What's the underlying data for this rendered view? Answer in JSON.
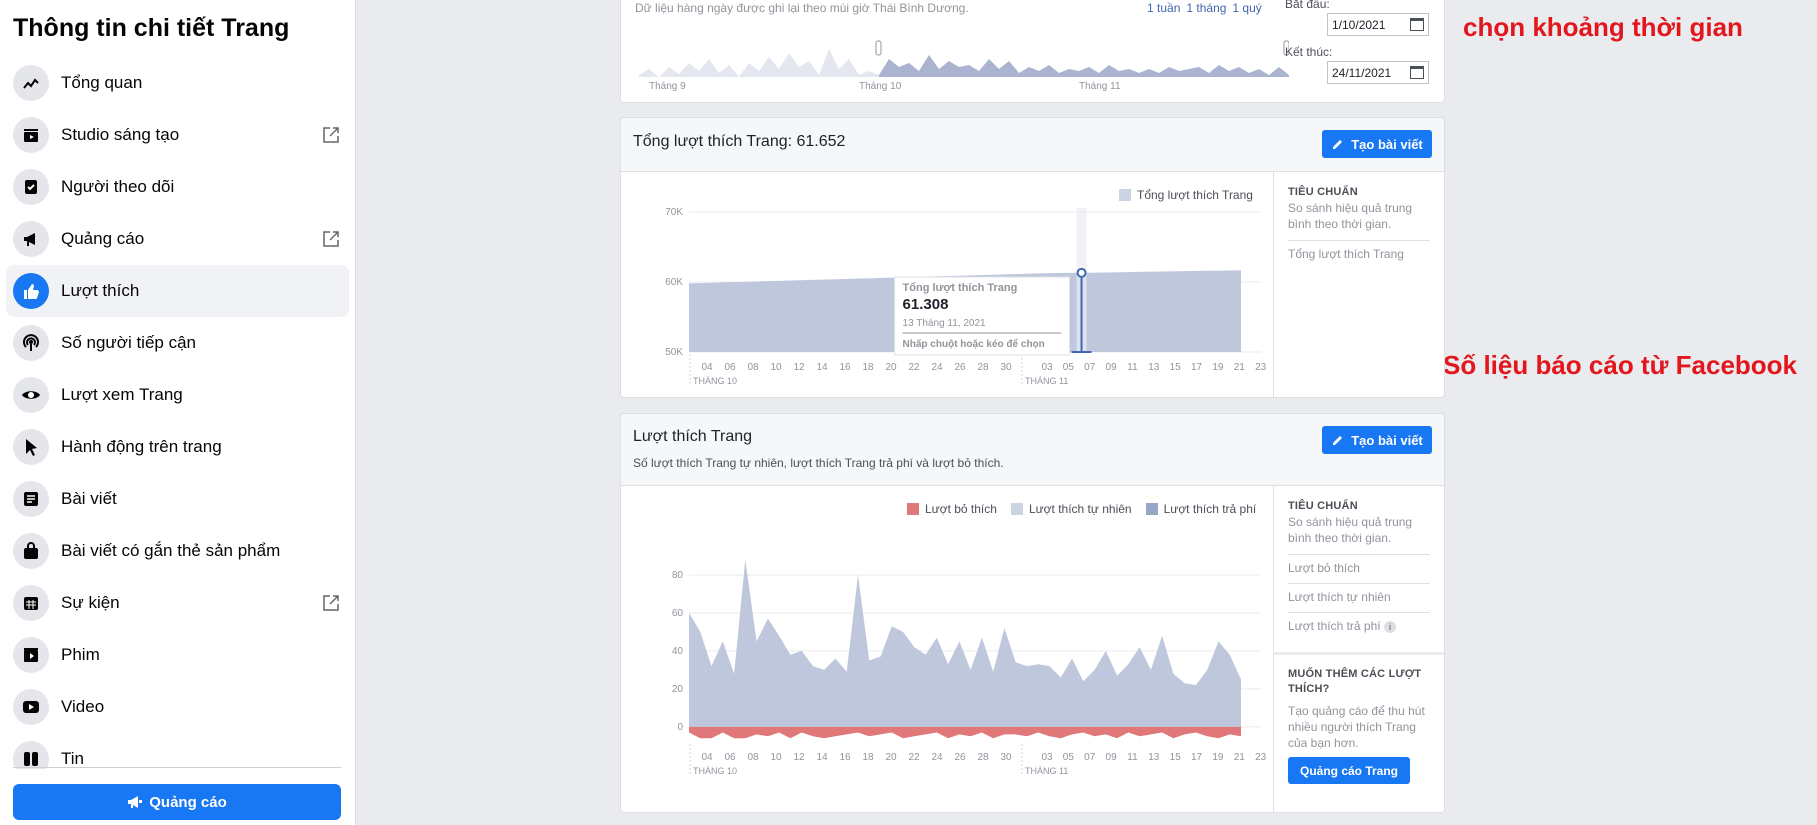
{
  "sidebar": {
    "title": "Thông tin chi tiết Trang",
    "items": [
      {
        "label": "Tổng quan",
        "icon": "overview-chart-icon"
      },
      {
        "label": "Studio sáng tạo",
        "icon": "clapper-icon",
        "external": true
      },
      {
        "label": "Người theo dõi",
        "icon": "followers-icon"
      },
      {
        "label": "Quảng cáo",
        "icon": "megaphone-icon",
        "external": true
      },
      {
        "label": "Lượt thích",
        "icon": "thumbs-up-icon",
        "active": true
      },
      {
        "label": "Số người tiếp cận",
        "icon": "reach-antenna-icon"
      },
      {
        "label": "Lượt xem Trang",
        "icon": "eye-icon"
      },
      {
        "label": "Hành động trên trang",
        "icon": "cursor-icon"
      },
      {
        "label": "Bài viết",
        "icon": "post-icon"
      },
      {
        "label": "Bài viết có gắn thẻ sản phẩm",
        "icon": "shopping-bag-icon"
      },
      {
        "label": "Sự kiện",
        "icon": "calendar-icon",
        "external": true
      },
      {
        "label": "Phim",
        "icon": "film-icon"
      },
      {
        "label": "Video",
        "icon": "video-play-icon"
      },
      {
        "label": "Tin",
        "icon": "stories-icon"
      }
    ],
    "ads_button": "Quảng cáo"
  },
  "range_panel": {
    "note": "Dữ liệu hàng ngày được ghi lại theo múi giờ Thái Bình Dương.",
    "quick_ranges": [
      "1 tuần",
      "1 tháng",
      "1 quý"
    ],
    "month_labels": [
      "Tháng 9",
      "Tháng 10",
      "Tháng 11"
    ],
    "start_label": "Bắt đầu:",
    "start_value": "1/10/2021",
    "end_label": "Kết thúc:",
    "end_value": "24/11/2021"
  },
  "annotations": {
    "top": "chọn khoảng thời gian",
    "middle": "Số liệu báo cáo từ Facebook"
  },
  "total_likes_panel": {
    "title": "Tổng lượt thích Trang: 61.652",
    "create_button": "Tạo bài viết",
    "legend": "Tổng lượt thích Trang",
    "side_head": "TIÊU CHUẨN",
    "side_sub": "So sánh hiệu quả trung bình theo thời gian.",
    "side_items": [
      "Tổng lượt thích Trang"
    ],
    "tooltip": {
      "title": "Tổng lượt thích Trang",
      "value": "61.308",
      "date": "13 Tháng 11, 2021",
      "hint": "Nhấp chuột hoặc kéo để chọn"
    }
  },
  "page_likes_panel": {
    "title": "Lượt thích Trang",
    "subtitle": "Số lượt thích Trang tự nhiên, lượt thích Trang trả phí và lượt bỏ thích.",
    "create_button": "Tạo bài viết",
    "legend": [
      "Lượt bỏ thích",
      "Lượt thích tự nhiên",
      "Lượt thích trả phí"
    ],
    "side_head": "TIÊU CHUẨN",
    "side_sub": "So sánh hiệu quả trung bình theo thời gian.",
    "side_items": [
      "Lượt bỏ thích",
      "Lượt thích tự nhiên",
      "Lượt thích trả phí"
    ],
    "promo_head": "MUỐN THÊM CÁC LƯỢT THÍCH?",
    "promo_text": "Tạo quảng cáo để thu hút nhiều người thích Trang của bạn hơn.",
    "promo_button": "Quảng cáo Trang"
  },
  "colors": {
    "accent": "#1877f2",
    "organic": "#bec7dc",
    "paid": "#9aa6c8",
    "unlikes": "#e0787a",
    "annotation": "#e3161c"
  },
  "chart_data": [
    {
      "type": "area",
      "title": "Tổng lượt thích Trang",
      "series": [
        {
          "name": "Tổng lượt thích Trang",
          "values": [
            59800,
            59850,
            59900,
            59950,
            60000,
            60050,
            60100,
            60150,
            60200,
            60250,
            60300,
            60350,
            60400,
            60450,
            60500,
            60550,
            60600,
            60650,
            60700,
            60750,
            60800,
            60850,
            60900,
            60950,
            61000,
            61050,
            61100,
            61150,
            61200,
            61250,
            61280,
            61300,
            61308,
            61330,
            61360,
            61390,
            61420,
            61450,
            61480,
            61510,
            61540,
            61570,
            61600,
            61620,
            61640,
            61652
          ]
        }
      ],
      "x_ticks": [
        "04",
        "06",
        "08",
        "10",
        "12",
        "14",
        "16",
        "18",
        "20",
        "22",
        "24",
        "26",
        "28",
        "30",
        "03",
        "05",
        "07",
        "09",
        "11",
        "13",
        "15",
        "17",
        "19",
        "21",
        "23"
      ],
      "x_month_labels": [
        "THÁNG 10",
        "THÁNG 11"
      ],
      "y_ticks": [
        "50K",
        "60K",
        "70K"
      ],
      "ylim": [
        50000,
        70000
      ]
    },
    {
      "type": "area",
      "title": "Lượt thích Trang",
      "series": [
        {
          "name": "Lượt thích tự nhiên",
          "values": [
            60,
            50,
            32,
            45,
            28,
            88,
            45,
            57,
            48,
            38,
            40,
            32,
            30,
            36,
            29,
            80,
            35,
            37,
            53,
            50,
            42,
            38,
            47,
            33,
            45,
            30,
            47,
            29,
            52,
            34,
            32,
            33,
            32,
            26,
            36,
            24,
            30,
            40,
            27,
            33,
            42,
            30,
            48,
            28,
            23,
            22,
            30,
            45,
            38,
            25
          ]
        },
        {
          "name": "Lượt bỏ thích",
          "values": [
            -3,
            -6,
            -6,
            -3,
            -6,
            -6,
            -4,
            -5,
            -3,
            -6,
            -3,
            -5,
            -6,
            -5,
            -4,
            -3,
            -5,
            -4,
            -3,
            -6,
            -5,
            -4,
            -3,
            -6,
            -4,
            -5,
            -3,
            -6,
            -4,
            -4,
            -5,
            -3,
            -5,
            -6,
            -4,
            -3,
            -5,
            -4,
            -6,
            -3,
            -5,
            -4,
            -3,
            -6,
            -4,
            -3,
            -5,
            -6,
            -4,
            -5
          ]
        },
        {
          "name": "Lượt thích trả phí",
          "values": []
        }
      ],
      "x_ticks": [
        "04",
        "06",
        "08",
        "10",
        "12",
        "14",
        "16",
        "18",
        "20",
        "22",
        "24",
        "26",
        "28",
        "30",
        "03",
        "05",
        "07",
        "09",
        "11",
        "13",
        "15",
        "17",
        "19",
        "21",
        "23"
      ],
      "x_month_labels": [
        "THÁNG 10",
        "THÁNG 11"
      ],
      "y_ticks": [
        "0",
        "20",
        "40",
        "60",
        "80"
      ],
      "ylim": [
        -8,
        90
      ]
    }
  ]
}
